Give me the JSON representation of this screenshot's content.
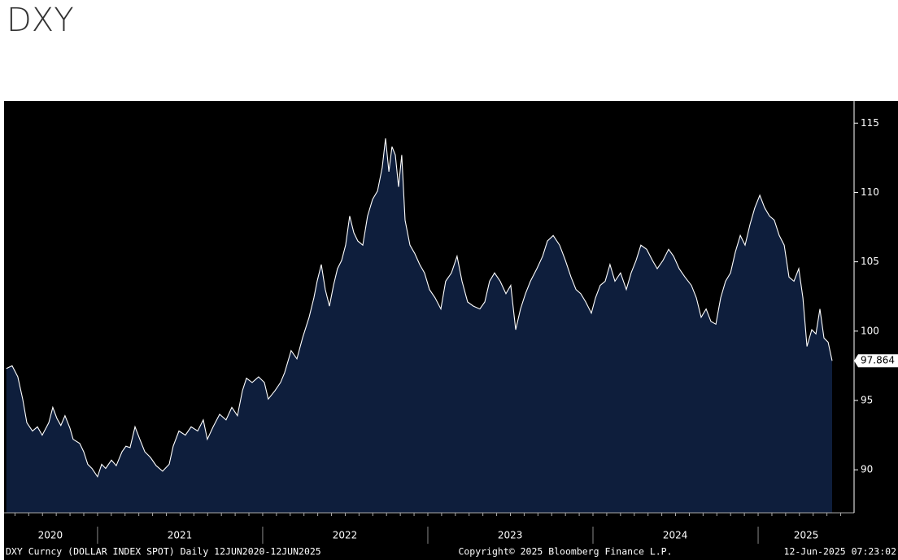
{
  "chart_data": {
    "type": "area",
    "title": "DXY",
    "x": [
      2020.448,
      2020.483,
      2020.517,
      2020.547,
      2020.572,
      2020.606,
      2020.636,
      2020.665,
      2020.705,
      2020.729,
      2020.754,
      2020.778,
      2020.803,
      2020.833,
      2020.852,
      2020.892,
      2020.916,
      2020.941,
      2020.966,
      2021.0,
      2021.025,
      2021.049,
      2021.084,
      2021.113,
      2021.148,
      2021.172,
      2021.197,
      2021.227,
      2021.256,
      2021.286,
      2021.32,
      2021.355,
      2021.394,
      2021.434,
      2021.458,
      2021.493,
      2021.532,
      2021.567,
      2021.606,
      2021.64,
      2021.665,
      2021.7,
      2021.739,
      2021.778,
      2021.813,
      2021.847,
      2021.877,
      2021.902,
      2021.936,
      2021.975,
      2022.01,
      2022.034,
      2022.074,
      2022.108,
      2022.133,
      2022.172,
      2022.207,
      2022.241,
      2022.281,
      2022.31,
      2022.33,
      2022.355,
      2022.379,
      2022.404,
      2022.429,
      2022.453,
      2022.478,
      2022.502,
      2022.527,
      2022.552,
      2022.576,
      2022.606,
      2022.635,
      2022.665,
      2022.695,
      2022.724,
      2022.744,
      2022.764,
      2022.783,
      2022.803,
      2022.823,
      2022.842,
      2022.862,
      2022.892,
      2022.921,
      2022.951,
      2022.98,
      2023.01,
      2023.044,
      2023.079,
      2023.108,
      2023.143,
      2023.177,
      2023.207,
      2023.241,
      2023.276,
      2023.315,
      2023.345,
      2023.374,
      2023.404,
      2023.438,
      2023.473,
      2023.502,
      2023.532,
      2023.561,
      2023.591,
      2023.621,
      2023.66,
      2023.695,
      2023.724,
      2023.759,
      2023.798,
      2023.833,
      2023.867,
      2023.897,
      2023.926,
      2023.956,
      2023.99,
      2024.015,
      2024.044,
      2024.074,
      2024.103,
      2024.133,
      2024.167,
      2024.202,
      2024.231,
      2024.261,
      2024.29,
      2024.325,
      2024.36,
      2024.389,
      2024.424,
      2024.458,
      2024.488,
      2024.522,
      2024.557,
      2024.596,
      2024.626,
      2024.655,
      2024.685,
      2024.714,
      2024.744,
      2024.773,
      2024.803,
      2024.833,
      2024.862,
      2024.892,
      2024.921,
      2024.951,
      2024.98,
      2025.01,
      2025.039,
      2025.069,
      2025.098,
      2025.128,
      2025.158,
      2025.187,
      2025.217,
      2025.246,
      2025.271,
      2025.296,
      2025.325,
      2025.35,
      2025.374,
      2025.399,
      2025.424,
      2025.448
    ],
    "values": [
      97.3,
      97.5,
      96.7,
      95.1,
      93.4,
      92.8,
      93.1,
      92.5,
      93.4,
      94.5,
      93.7,
      93.2,
      93.9,
      93.0,
      92.2,
      91.9,
      91.3,
      90.4,
      90.1,
      89.5,
      90.4,
      90.1,
      90.7,
      90.3,
      91.3,
      91.7,
      91.6,
      93.1,
      92.2,
      91.3,
      90.9,
      90.3,
      89.9,
      90.4,
      91.7,
      92.8,
      92.5,
      93.1,
      92.8,
      93.6,
      92.2,
      93.1,
      94.0,
      93.6,
      94.5,
      93.9,
      95.7,
      96.6,
      96.3,
      96.7,
      96.3,
      95.1,
      95.7,
      96.3,
      97.0,
      98.6,
      98.0,
      99.5,
      101.0,
      102.4,
      103.6,
      104.8,
      103.0,
      101.8,
      103.3,
      104.5,
      105.1,
      106.2,
      108.3,
      107.1,
      106.5,
      106.2,
      108.3,
      109.5,
      110.1,
      111.8,
      113.9,
      111.5,
      113.3,
      112.7,
      110.4,
      112.7,
      108.0,
      106.2,
      105.6,
      104.8,
      104.2,
      103.0,
      102.4,
      101.6,
      103.6,
      104.2,
      105.4,
      103.6,
      102.1,
      101.8,
      101.6,
      102.1,
      103.6,
      104.2,
      103.6,
      102.7,
      103.3,
      100.1,
      101.6,
      102.7,
      103.6,
      104.5,
      105.4,
      106.5,
      106.9,
      106.2,
      105.1,
      103.9,
      103.0,
      102.7,
      102.1,
      101.3,
      102.4,
      103.3,
      103.6,
      104.8,
      103.6,
      104.2,
      103.0,
      104.2,
      105.1,
      106.2,
      105.9,
      105.1,
      104.5,
      105.1,
      105.9,
      105.4,
      104.5,
      103.9,
      103.3,
      102.4,
      101.0,
      101.6,
      100.7,
      100.5,
      102.4,
      103.6,
      104.2,
      105.7,
      106.9,
      106.2,
      107.7,
      108.9,
      109.8,
      108.9,
      108.3,
      108.0,
      106.9,
      106.2,
      103.9,
      103.6,
      104.5,
      102.4,
      98.9,
      100.1,
      99.8,
      101.6,
      99.5,
      99.2,
      97.864
    ],
    "color": "#ffffff",
    "fill": "#0e1e3c",
    "xlim": [
      2020.434,
      2025.581
    ],
    "xticks": [
      {
        "value": 2020.714,
        "label": "2020"
      },
      {
        "value": 2021.498,
        "label": "2021"
      },
      {
        "value": 2022.498,
        "label": "2022"
      },
      {
        "value": 2023.498,
        "label": "2023"
      },
      {
        "value": 2024.498,
        "label": "2024"
      },
      {
        "value": 2025.291,
        "label": "2025"
      }
    ],
    "ylim": [
      86.9,
      116.6
    ],
    "yticks": [
      90,
      95,
      100,
      105,
      110,
      115
    ],
    "notes": [
      "DXY Curncy (DOLLAR INDEX SPOT)  Daily 12JUN2020-12JUN2025",
      "Copyright© 2025 Bloomberg Finance L.P.",
      "12-Jun-2025 07:23:02"
    ]
  }
}
